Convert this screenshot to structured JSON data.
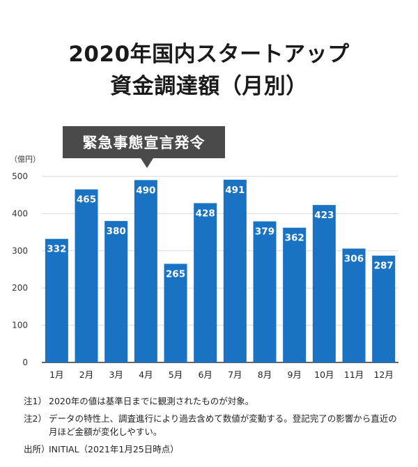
{
  "title": {
    "line1": "2020年国内スタートアップ",
    "line2": "資金調達額（月別）"
  },
  "callout": {
    "label": "緊急事態宣言発令",
    "target_category": "4月"
  },
  "colors": {
    "bar": "#1a72c3",
    "grid": "#d9d9d9",
    "axis": "#333333",
    "bar_label": "#ffffff",
    "callout_bg": "#4a4a4a"
  },
  "chart_data": {
    "type": "bar",
    "title": "2020年国内スタートアップ資金調達額（月別）",
    "ylabel": "（億円）",
    "xlabel": "",
    "categories": [
      "1月",
      "2月",
      "3月",
      "4月",
      "5月",
      "6月",
      "7月",
      "8月",
      "9月",
      "10月",
      "11月",
      "12月"
    ],
    "values": [
      332,
      465,
      380,
      490,
      265,
      428,
      491,
      379,
      362,
      423,
      306,
      287
    ],
    "ylim": [
      0,
      500
    ],
    "yticks": [
      0,
      100,
      200,
      300,
      400,
      500
    ],
    "grid": true,
    "data_labels": true
  },
  "notes": [
    {
      "tag": "注1）",
      "text": "2020年の値は基準日までに観測されたものが対象。"
    },
    {
      "tag": "注2）",
      "text": "データの特性上、調査進行により過去含めて数値が変動する。登記完了の影響から直近の月ほど金額が変化しやすい。"
    }
  ],
  "source": {
    "tag": "出所）",
    "text": "INITIAL（2021年1月25日時点）"
  }
}
